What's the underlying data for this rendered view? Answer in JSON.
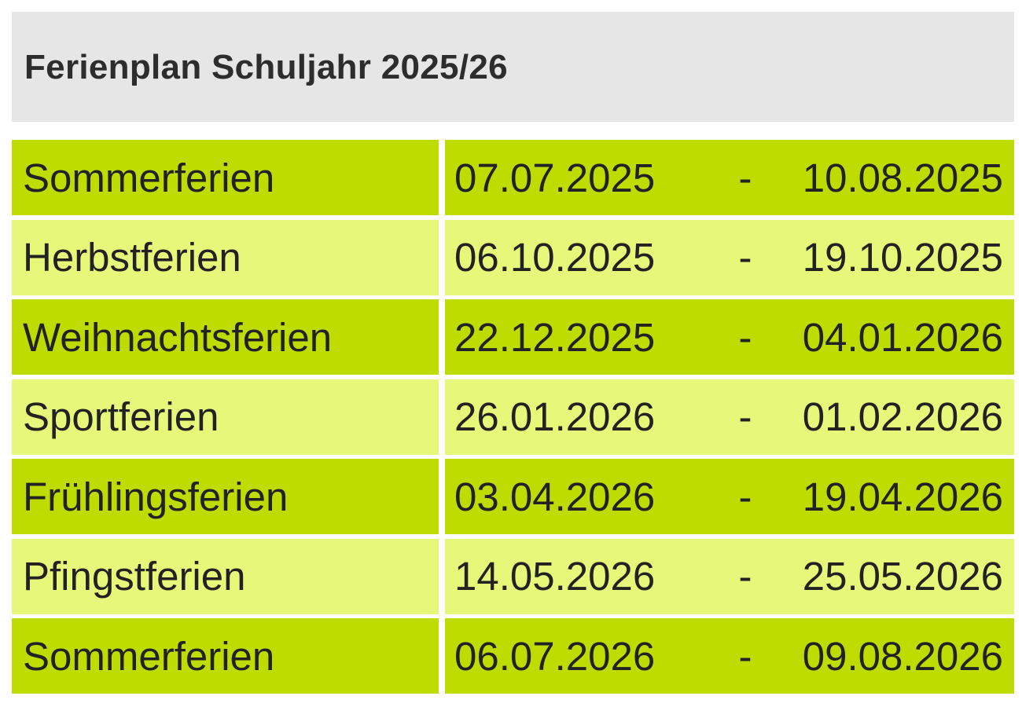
{
  "header": {
    "title": "Ferienplan Schuljahr 2025/26"
  },
  "table": {
    "separator": "-",
    "rows": [
      [
        "Sommerferien",
        "07.07.2025",
        "10.08.2025"
      ],
      [
        "Herbstferien",
        "06.10.2025",
        "19.10.2025"
      ],
      [
        "Weihnachtsferien",
        "22.12.2025",
        "04.01.2026"
      ],
      [
        "Sportferien",
        "26.01.2026",
        "01.02.2026"
      ],
      [
        "Frühlingsferien",
        "03.04.2026",
        "19.04.2026"
      ],
      [
        "Pfingstferien",
        "14.05.2026",
        "25.05.2026"
      ],
      [
        "Sommerferien",
        "06.07.2026",
        "09.08.2026"
      ]
    ]
  }
}
